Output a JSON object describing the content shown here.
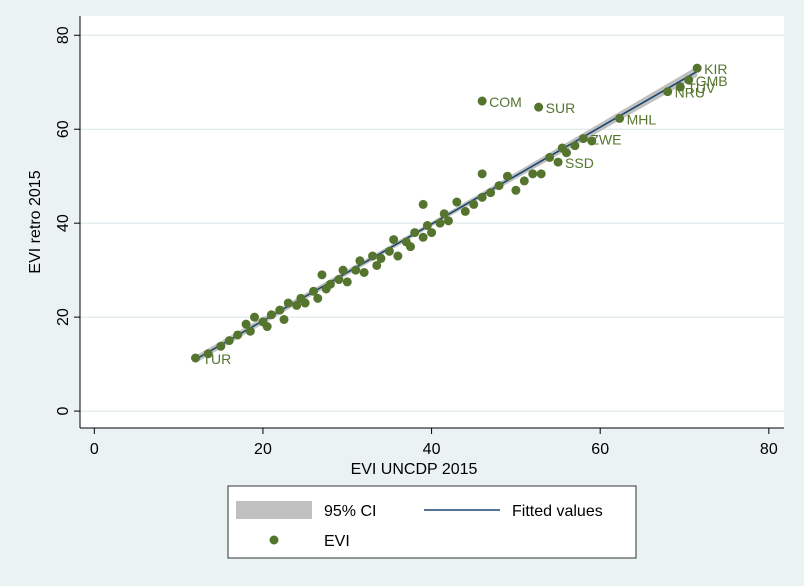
{
  "chart_data": {
    "type": "scatter",
    "xlabel": "EVI UNCDP 2015",
    "ylabel": "EVI retro 2015",
    "xlim": [
      -1.7,
      81.8
    ],
    "ylim": [
      -3.6,
      84.1
    ],
    "xticks": [
      0,
      20,
      40,
      60,
      80
    ],
    "yticks": [
      0,
      20,
      40,
      60,
      80
    ],
    "grid": true,
    "series": [
      {
        "name": "95% CI",
        "type": "area",
        "color": "#c0c0c0",
        "x": [
          12,
          40,
          71.5
        ],
        "lower": [
          10.2,
          39.3,
          71.2
        ],
        "upper": [
          11.8,
          40.3,
          73.4
        ]
      },
      {
        "name": "Fitted values",
        "type": "line",
        "color": "#1a476f",
        "x": [
          12,
          40,
          71.5
        ],
        "values": [
          11,
          39.8,
          72.3
        ]
      },
      {
        "name": "EVI",
        "type": "scatter",
        "color": "#55752f",
        "x": [
          12,
          13.5,
          15,
          16,
          17,
          18,
          18.5,
          19,
          20,
          20.5,
          21,
          22,
          22.5,
          23,
          24,
          24.5,
          25,
          26,
          26.5,
          27,
          27.5,
          28,
          29,
          29.5,
          30,
          31,
          31.5,
          32,
          33,
          33.5,
          34,
          35,
          35.5,
          36,
          37,
          37.5,
          38,
          39,
          39.5,
          40,
          41,
          41.5,
          42,
          43,
          44,
          45,
          46,
          47,
          48,
          49,
          50,
          51,
          52,
          53,
          54,
          55,
          55.5,
          56,
          57,
          58,
          59,
          46,
          52.7,
          62.3,
          68,
          69.5,
          70.5,
          71.5,
          39,
          46
        ],
        "values": [
          11.3,
          12.2,
          13.8,
          15,
          16.2,
          18.5,
          17,
          20,
          19,
          18,
          20.5,
          21.5,
          19.5,
          23,
          22.5,
          24,
          23,
          25.5,
          24,
          29,
          26,
          27,
          28,
          30,
          27.5,
          30,
          32,
          29.5,
          33,
          31,
          32.5,
          34,
          36.5,
          33,
          36,
          35,
          38,
          37,
          39.5,
          38,
          40,
          42,
          40.5,
          44.5,
          42.5,
          44,
          45.5,
          46.5,
          48,
          50,
          47,
          49,
          50.5,
          50.5,
          54,
          53,
          56,
          55,
          56.5,
          58,
          57.5,
          66,
          64.7,
          62.3,
          68,
          69,
          70.5,
          73,
          44,
          50.5
        ],
        "labels": [
          "TUR",
          null,
          null,
          null,
          null,
          null,
          null,
          null,
          null,
          null,
          null,
          null,
          null,
          null,
          null,
          null,
          null,
          null,
          null,
          null,
          null,
          null,
          null,
          null,
          null,
          null,
          null,
          null,
          null,
          null,
          null,
          null,
          null,
          null,
          null,
          null,
          null,
          null,
          null,
          null,
          null,
          null,
          null,
          null,
          null,
          null,
          null,
          null,
          null,
          null,
          null,
          null,
          null,
          null,
          null,
          "SSD",
          null,
          null,
          null,
          "ZWE",
          null,
          "COM",
          "SUR",
          "MHL",
          "NRU",
          "TUV",
          "GMB",
          "KIR",
          null,
          null
        ]
      }
    ]
  }
}
